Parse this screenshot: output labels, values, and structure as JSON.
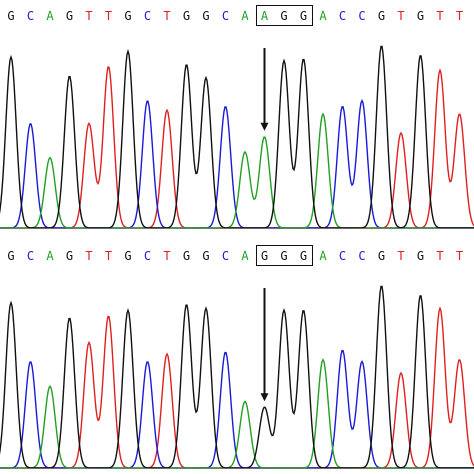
{
  "colors": {
    "A": "#22a022",
    "C": "#1a1ad8",
    "G": "#111111",
    "T": "#e02020",
    "arrow": "#111111",
    "box": "#111111"
  },
  "panels": [
    {
      "id": "top",
      "sequence": [
        "G",
        "C",
        "A",
        "G",
        "T",
        "T",
        "G",
        "C",
        "T",
        "G",
        "G",
        "C",
        "A",
        "A",
        "G",
        "G",
        "A",
        "C",
        "C",
        "G",
        "T",
        "G",
        "T",
        "T"
      ],
      "boxed_bases": [
        13,
        15
      ],
      "arrow_base": 13,
      "peak_heights": [
        0.9,
        0.55,
        0.37,
        0.8,
        0.55,
        0.85,
        0.93,
        0.67,
        0.62,
        0.86,
        0.79,
        0.64,
        0.4,
        0.48,
        0.88,
        0.89,
        0.6,
        0.64,
        0.67,
        0.96,
        0.5,
        0.91,
        0.83,
        0.6
      ]
    },
    {
      "id": "bottom",
      "sequence": [
        "G",
        "C",
        "A",
        "G",
        "T",
        "T",
        "G",
        "C",
        "T",
        "G",
        "G",
        "C",
        "A",
        "G",
        "G",
        "G",
        "A",
        "C",
        "C",
        "G",
        "T",
        "G",
        "T",
        "T"
      ],
      "boxed_bases": [
        13,
        15
      ],
      "arrow_base": 13,
      "peak_heights": [
        0.87,
        0.56,
        0.43,
        0.79,
        0.66,
        0.8,
        0.83,
        0.56,
        0.6,
        0.86,
        0.84,
        0.61,
        0.35,
        0.32,
        0.83,
        0.83,
        0.57,
        0.62,
        0.56,
        0.96,
        0.5,
        0.91,
        0.84,
        0.57
      ]
    }
  ]
}
